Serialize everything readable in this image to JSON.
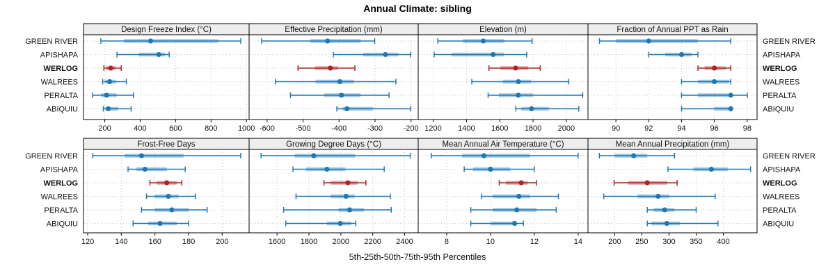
{
  "title": "Annual Climate: sibling",
  "caption": "5th-25th-50th-75th-95th Percentiles",
  "sites": [
    "GREEN RIVER",
    "APISHAPA",
    "WERLOG",
    "WALREES",
    "PERALTA",
    "ABIQUIU"
  ],
  "highlight_site": "WERLOG",
  "colors": {
    "series_normal": "#1f77b4",
    "series_highlight": "#b22222",
    "strip_bg": "#ededed",
    "panel_border": "#000000",
    "gridline": "#c4c4c4",
    "text": "#111111"
  },
  "chart_data": {
    "type": "interval",
    "percentiles": [
      "5th",
      "25th",
      "50th",
      "75th",
      "95th"
    ],
    "legend_position": "bottom-caption",
    "grid": "dotted",
    "panels": [
      {
        "title": "Design Freeze Index (°C)",
        "row": 0,
        "col": 0,
        "xlim": [
          80,
          1015
        ],
        "ticks": [
          200,
          400,
          600,
          800,
          1000
        ],
        "series": [
          {
            "site": "GREEN RIVER",
            "values": [
              178,
              308,
              459,
              841,
              968
            ]
          },
          {
            "site": "APISHAPA",
            "values": [
              269,
              391,
              505,
              540,
              564
            ]
          },
          {
            "site": "WERLOG",
            "values": [
              195,
              207,
              234,
              262,
              293
            ]
          },
          {
            "site": "WALREES",
            "values": [
              188,
              201,
              228,
              263,
              322
            ]
          },
          {
            "site": "PERALTA",
            "values": [
              132,
              178,
              210,
              267,
              362
            ]
          },
          {
            "site": "ABIQUIU",
            "values": [
              192,
              204,
              220,
              276,
              349
            ]
          }
        ]
      },
      {
        "title": "Effective Precipitation (mm)",
        "row": 0,
        "col": 1,
        "xlim": [
          -650,
          -180
        ],
        "ticks": [
          -600,
          -500,
          -400,
          -300,
          -200
        ],
        "series": [
          {
            "site": "GREEN RIVER",
            "values": [
              -615,
              -480,
              -432,
              -340,
              -301
            ]
          },
          {
            "site": "APISHAPA",
            "values": [
              -416,
              -333,
              -271,
              -235,
              -201
            ]
          },
          {
            "site": "WERLOG",
            "values": [
              -514,
              -467,
              -424,
              -403,
              -356
            ]
          },
          {
            "site": "WALREES",
            "values": [
              -577,
              -465,
              -398,
              -358,
              -242
            ]
          },
          {
            "site": "PERALTA",
            "values": [
              -535,
              -441,
              -393,
              -340,
              -261
            ]
          },
          {
            "site": "ABIQUIU",
            "values": [
              -406,
              -390,
              -378,
              -306,
              -201
            ]
          }
        ]
      },
      {
        "title": "Elevation (m)",
        "row": 0,
        "col": 2,
        "xlim": [
          1110,
          2130
        ],
        "ticks": [
          1200,
          1400,
          1600,
          1800,
          2000
        ],
        "series": [
          {
            "site": "GREEN RIVER",
            "values": [
              1228,
              1379,
              1501,
              1628,
              1794
            ]
          },
          {
            "site": "APISHAPA",
            "values": [
              1206,
              1310,
              1560,
              1625,
              1762
            ]
          },
          {
            "site": "WERLOG",
            "values": [
              1535,
              1604,
              1695,
              1770,
              1843
            ]
          },
          {
            "site": "WALREES",
            "values": [
              1432,
              1618,
              1712,
              1788,
              2014
            ]
          },
          {
            "site": "PERALTA",
            "values": [
              1530,
              1595,
              1711,
              1798,
              2098
            ]
          },
          {
            "site": "ABIQUIU",
            "values": [
              1696,
              1729,
              1791,
              1895,
              2075
            ]
          }
        ]
      },
      {
        "title": "Fraction of Annual PPT as Rain",
        "row": 0,
        "col": 3,
        "xlim": [
          88.3,
          98.6
        ],
        "ticks": [
          90,
          92,
          94,
          96,
          98
        ],
        "series": [
          {
            "site": "GREEN RIVER",
            "values": [
              89,
              90,
              92,
              95,
              97
            ]
          },
          {
            "site": "APISHAPA",
            "values": [
              92,
              93,
              94,
              94.6,
              95
            ]
          },
          {
            "site": "WERLOG",
            "values": [
              95,
              95.4,
              96,
              96.7,
              97
            ]
          },
          {
            "site": "WALREES",
            "values": [
              94,
              95,
              96,
              96.9,
              97
            ]
          },
          {
            "site": "PERALTA",
            "values": [
              94,
              95,
              97,
              97,
              98
            ]
          },
          {
            "site": "ABIQUIU",
            "values": [
              94,
              96,
              97,
              97,
              97
            ]
          }
        ]
      },
      {
        "title": "Frost-Free Days",
        "row": 1,
        "col": 0,
        "xlim": [
          117.5,
          216
        ],
        "ticks": [
          120,
          140,
          160,
          180,
          200
        ],
        "series": [
          {
            "site": "GREEN RIVER",
            "values": [
              123,
              142,
              152,
              177,
              211
            ]
          },
          {
            "site": "APISHAPA",
            "values": [
              144,
              149,
              154,
              167,
              178
            ]
          },
          {
            "site": "WERLOG",
            "values": [
              157,
              161,
              167,
              173,
              176
            ]
          },
          {
            "site": "WALREES",
            "values": [
              155,
              160,
              168,
              174,
              184
            ]
          },
          {
            "site": "PERALTA",
            "values": [
              152,
              160,
              170,
              180,
              191
            ]
          },
          {
            "site": "ABIQUIU",
            "values": [
              147,
              156,
              163,
              173,
              180
            ]
          }
        ]
      },
      {
        "title": "Growing Degree Days (°C)",
        "row": 1,
        "col": 1,
        "xlim": [
          1425,
          2485
        ],
        "ticks": [
          1600,
          1800,
          2000,
          2200,
          2400
        ],
        "series": [
          {
            "site": "GREEN RIVER",
            "values": [
              1500,
              1710,
              1830,
              2090,
              2435
            ]
          },
          {
            "site": "APISHAPA",
            "values": [
              1700,
              1782,
              1913,
              2029,
              2272
            ]
          },
          {
            "site": "WERLOG",
            "values": [
              1894,
              1935,
              2044,
              2106,
              2157
            ]
          },
          {
            "site": "WALREES",
            "values": [
              1719,
              1935,
              2033,
              2087,
              2310
            ]
          },
          {
            "site": "PERALTA",
            "values": [
              1641,
              1985,
              2055,
              2145,
              2316
            ]
          },
          {
            "site": "ABIQUIU",
            "values": [
              1655,
              1913,
              1997,
              2065,
              2094
            ]
          }
        ]
      },
      {
        "title": "Mean Annual Air Temperature (°C)",
        "row": 1,
        "col": 2,
        "xlim": [
          6.7,
          14.45
        ],
        "ticks": [
          8,
          10,
          12,
          14
        ],
        "series": [
          {
            "site": "GREEN RIVER",
            "values": [
              7.3,
              8.7,
              9.7,
              11.8,
              14.0
            ]
          },
          {
            "site": "APISHAPA",
            "values": [
              8.8,
              9.2,
              10.0,
              10.9,
              12.0
            ]
          },
          {
            "site": "WERLOG",
            "values": [
              10.4,
              10.7,
              11.4,
              11.7,
              12.1
            ]
          },
          {
            "site": "WALREES",
            "values": [
              9.6,
              10.1,
              11.3,
              11.8,
              13.1
            ]
          },
          {
            "site": "PERALTA",
            "values": [
              9.1,
              10.1,
              11.2,
              12.1,
              13.0
            ]
          },
          {
            "site": "ABIQUIU",
            "values": [
              9.1,
              10.0,
              11.1,
              11.2,
              11.5
            ]
          }
        ]
      },
      {
        "title": "Mean Annual Precipitation (mm)",
        "row": 1,
        "col": 3,
        "xlim": [
          151,
          462
        ],
        "ticks": [
          200,
          250,
          300,
          350,
          400
        ],
        "series": [
          {
            "site": "GREEN RIVER",
            "values": [
              172,
              200,
              235,
              260,
              310
            ]
          },
          {
            "site": "APISHAPA",
            "values": [
              298,
              345,
              378,
              408,
              450
            ]
          },
          {
            "site": "WERLOG",
            "values": [
              199,
              225,
              260,
              297,
              315
            ]
          },
          {
            "site": "WALREES",
            "values": [
              180,
              242,
              280,
              300,
              385
            ]
          },
          {
            "site": "PERALTA",
            "values": [
              260,
              272,
              292,
              310,
              350
            ]
          },
          {
            "site": "ABIQUIU",
            "values": [
              260,
              268,
              296,
              320,
              390
            ]
          }
        ]
      }
    ]
  }
}
